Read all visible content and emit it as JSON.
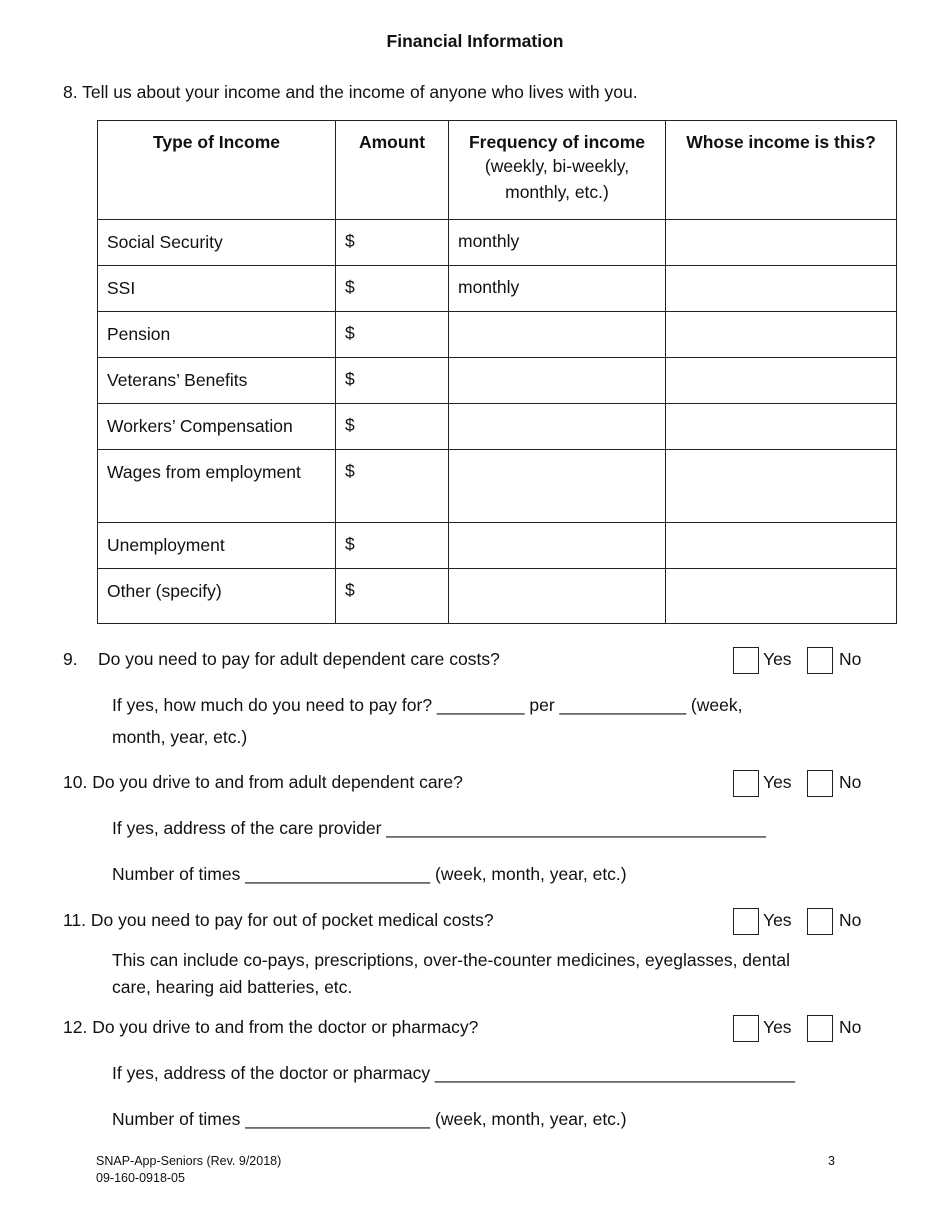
{
  "title": "Financial Information",
  "q8": {
    "text": "8.  Tell us about your income and the income of anyone who lives with you.",
    "headers": {
      "type": "Type of Income",
      "amount": "Amount",
      "frequency": "Frequency of income",
      "frequency_sub": "(weekly, bi-weekly, monthly, etc.)",
      "whose": "Whose income is this?"
    },
    "rows": [
      {
        "type": "Social Security",
        "amount": "$",
        "frequency": "monthly",
        "whose": ""
      },
      {
        "type": "SSI",
        "amount": "$",
        "frequency": "monthly",
        "whose": ""
      },
      {
        "type": "Pension",
        "amount": "$",
        "frequency": "",
        "whose": ""
      },
      {
        "type": "Veterans’ Benefits",
        "amount": "$",
        "frequency": "",
        "whose": ""
      },
      {
        "type": "Workers’ Compensation",
        "amount": "$",
        "frequency": "",
        "whose": ""
      },
      {
        "type": "Wages from employment",
        "amount": "$",
        "frequency": "",
        "whose": ""
      },
      {
        "type": "Unemployment",
        "amount": "$",
        "frequency": "",
        "whose": ""
      },
      {
        "type": "Other (specify)",
        "amount": "$",
        "frequency": "",
        "whose": ""
      }
    ]
  },
  "yes_label": "Yes",
  "no_label": "No",
  "q9": {
    "num": "9.",
    "text": "Do you need to pay for adult dependent care costs?",
    "line1": "If yes, how much do you need to pay for? _________  per  _____________ (week,",
    "line2": "month, year, etc.)"
  },
  "q10": {
    "text": "10. Do you drive to and from adult dependent care?",
    "line1": "If yes, address of the care provider _______________________________________",
    "line2": "Number of times ___________________ (week, month, year, etc.)"
  },
  "q11": {
    "text": "11. Do you need to pay for out of pocket medical costs?",
    "line1": "This can include co-pays, prescriptions, over-the-counter medicines, eyeglasses, dental",
    "line2": "care, hearing aid batteries, etc."
  },
  "q12": {
    "text": "12. Do you drive to and from the doctor or pharmacy?",
    "line1": "If yes, address of the doctor or pharmacy _____________________________________",
    "line2": "Number of times ___________________ (week, month, year, etc.)"
  },
  "footer": {
    "form": "SNAP-App-Seniors (Rev. 9/2018)",
    "code": "09-160-0918-05",
    "page": "3"
  }
}
